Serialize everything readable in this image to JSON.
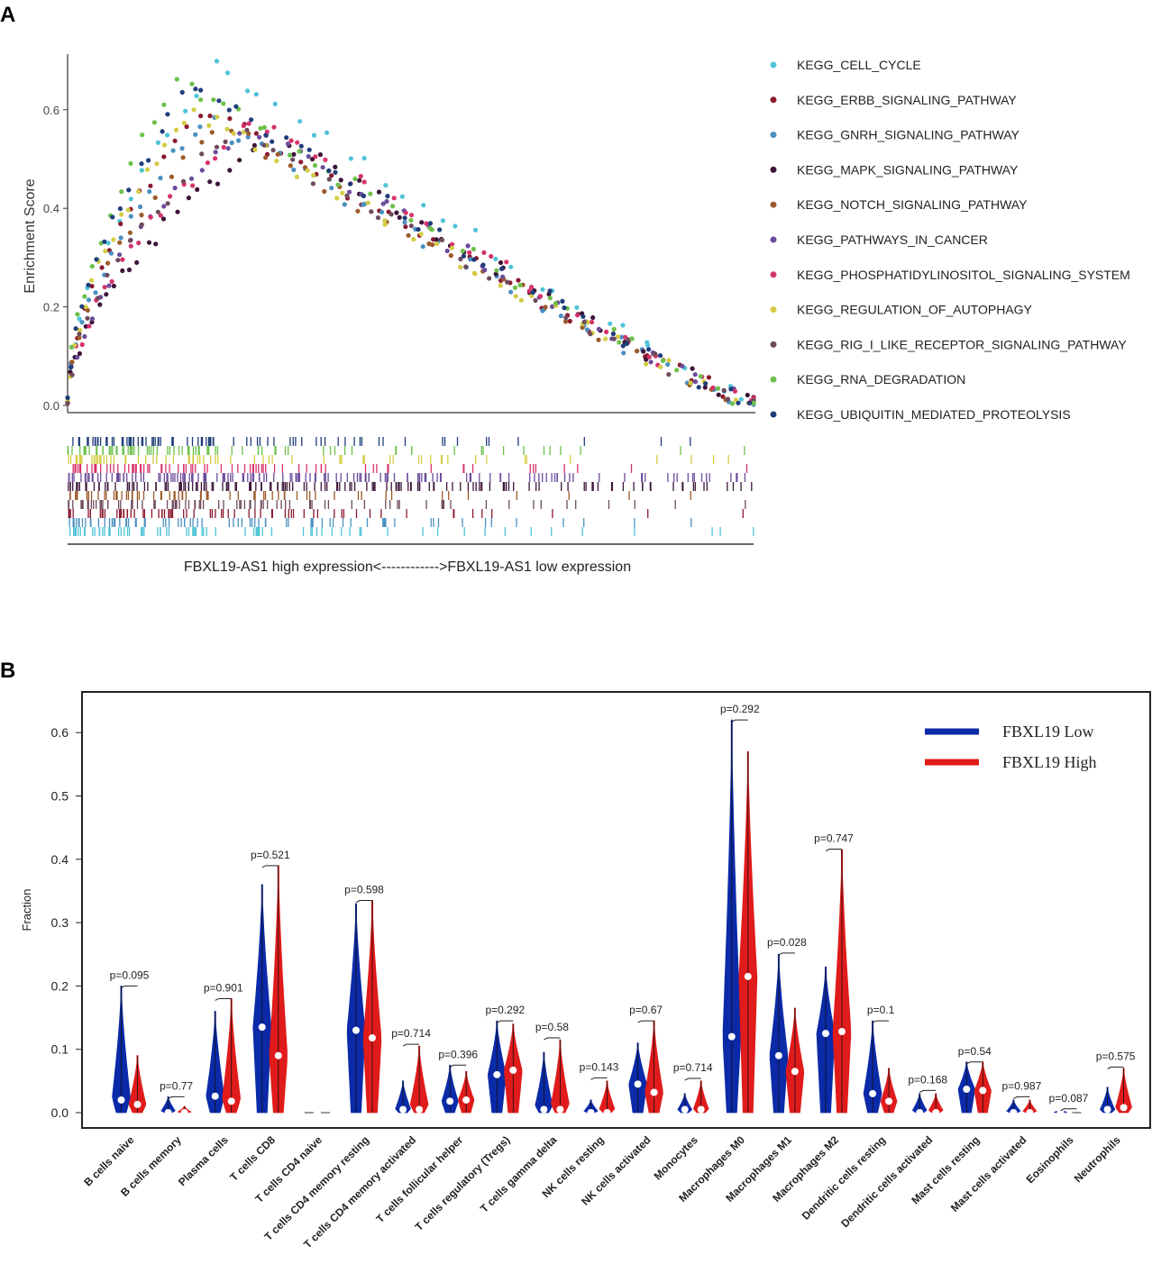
{
  "panel_labels": {
    "a": "A",
    "b": "B"
  },
  "chart_data": [
    {
      "type": "scatter",
      "id": "gsea",
      "ylabel": "Enrichment Score",
      "xlabel": "FBXL19-AS1 high expression<------------>FBXL19-AS1 low expression",
      "ylim": [
        0,
        0.7
      ],
      "yticks": [
        "0.0",
        "0.2",
        "0.4",
        "0.6"
      ],
      "ytick_values": [
        0,
        0.2,
        0.4,
        0.6
      ],
      "series": [
        {
          "name": "KEGG_CELL_CYCLE",
          "color": "#4fc3d7",
          "peak": 0.69,
          "peak_at": 0.22,
          "rank_density": [
            0.95,
            0.7,
            0.4,
            0.25,
            0.15,
            0.12,
            0.1,
            0.08,
            0.05,
            0.1
          ]
        },
        {
          "name": "KEGG_ERBB_SIGNALING_PATHWAY",
          "color": "#8b1a2f",
          "peak": 0.6,
          "peak_at": 0.2,
          "rank_density": [
            0.9,
            0.6,
            0.45,
            0.35,
            0.2,
            0.1,
            0.08,
            0.05,
            0.03,
            0.02
          ]
        },
        {
          "name": "KEGG_GNRH_SIGNALING_PATHWAY",
          "color": "#4a90c0",
          "peak": 0.58,
          "peak_at": 0.2,
          "rank_density": [
            0.85,
            0.55,
            0.4,
            0.3,
            0.3,
            0.15,
            0.1,
            0.08,
            0.05,
            0.05
          ]
        },
        {
          "name": "KEGG_MAPK_SIGNALING_PATHWAY",
          "color": "#3d1538",
          "peak": 0.55,
          "peak_at": 0.3,
          "rank_density": [
            0.9,
            0.8,
            0.7,
            0.65,
            0.6,
            0.55,
            0.5,
            0.4,
            0.35,
            0.3
          ]
        },
        {
          "name": "KEGG_NOTCH_SIGNALING_PATHWAY",
          "color": "#9c5a2a",
          "peak": 0.57,
          "peak_at": 0.22,
          "rank_density": [
            0.8,
            0.6,
            0.4,
            0.3,
            0.15,
            0.1,
            0.05,
            0.05,
            0.03,
            0.02
          ]
        },
        {
          "name": "KEGG_PATHWAYS_IN_CANCER",
          "color": "#6b4c9a",
          "peak": 0.57,
          "peak_at": 0.26,
          "rank_density": [
            0.95,
            0.85,
            0.75,
            0.7,
            0.6,
            0.5,
            0.4,
            0.3,
            0.25,
            0.4
          ]
        },
        {
          "name": "KEGG_PHOSPHATIDYLINOSITOL_SIGNALING_SYSTEM",
          "color": "#d6336c",
          "peak": 0.58,
          "peak_at": 0.28,
          "rank_density": [
            0.9,
            0.7,
            0.5,
            0.3,
            0.2,
            0.2,
            0.1,
            0.08,
            0.05,
            0.05
          ]
        },
        {
          "name": "KEGG_REGULATION_OF_AUTOPHAGY",
          "color": "#d4cc45",
          "peak": 0.6,
          "peak_at": 0.18,
          "rank_density": [
            0.8,
            0.5,
            0.3,
            0.2,
            0.15,
            0.25,
            0.1,
            0.05,
            0.05,
            0.1
          ]
        },
        {
          "name": "KEGG_RIG_I_LIKE_RECEPTOR_SIGNALING_PATHWAY",
          "color": "#6e4a5e",
          "peak": 0.56,
          "peak_at": 0.24,
          "rank_density": [
            0.9,
            0.7,
            0.5,
            0.35,
            0.25,
            0.2,
            0.15,
            0.1,
            0.08,
            0.05
          ]
        },
        {
          "name": "KEGG_RNA_DEGRADATION",
          "color": "#6cc04a",
          "peak": 0.66,
          "peak_at": 0.16,
          "rank_density": [
            0.95,
            0.7,
            0.4,
            0.25,
            0.15,
            0.1,
            0.2,
            0.1,
            0.05,
            0.05
          ]
        },
        {
          "name": "KEGG_UBIQUITIN_MEDIATED_PROTEOLYSIS",
          "color": "#1f3d7a",
          "peak": 0.65,
          "peak_at": 0.18,
          "rank_density": [
            0.98,
            0.75,
            0.5,
            0.35,
            0.25,
            0.1,
            0.1,
            0.05,
            0.03,
            0.03
          ]
        }
      ]
    },
    {
      "type": "violin",
      "id": "immune",
      "ylabel": "Fraction",
      "ylim": [
        0,
        0.65
      ],
      "yticks": [
        "0.0",
        "0.1",
        "0.2",
        "0.3",
        "0.4",
        "0.5",
        "0.6"
      ],
      "ytick_values": [
        0,
        0.1,
        0.2,
        0.3,
        0.4,
        0.5,
        0.6
      ],
      "legend": [
        {
          "name": "FBXL19 Low",
          "color": "#0a2aa8"
        },
        {
          "name": "FBXL19 High",
          "color": "#e01b1b"
        }
      ],
      "categories": [
        "B cells naive",
        "B cells memory",
        "Plasma cells",
        "T cells CD8",
        "T cells CD4 naive",
        "T cells CD4 memory resting",
        "T cells CD4 memory activated",
        "T cells follicular helper",
        "T cells regulatory (Tregs)",
        "T cells gamma delta",
        "NK cells resting",
        "NK cells activated",
        "Monocytes",
        "Macrophages M0",
        "Macrophages M1",
        "Macrophages M2",
        "Dendritic cells resting",
        "Dendritic cells activated",
        "Mast cells resting",
        "Mast cells activated",
        "Eosinophils",
        "Neutrophils"
      ],
      "pvalues": [
        "p=0.095",
        "p=0.77",
        "p=0.901",
        "p=0.521",
        "",
        "p=0.598",
        "p=0.714",
        "p=0.396",
        "p=0.292",
        "p=0.58",
        "p=0.143",
        "p=0.67",
        "p=0.714",
        "p=0.292",
        "p=0.028",
        "p=0.747",
        "p=0.1",
        "p=0.168",
        "p=0.54",
        "p=0.987",
        "p=0.087",
        "p=0.575"
      ],
      "low_max": [
        0.2,
        0.025,
        0.16,
        0.36,
        0.0,
        0.33,
        0.05,
        0.075,
        0.145,
        0.095,
        0.02,
        0.11,
        0.03,
        0.62,
        0.25,
        0.23,
        0.145,
        0.03,
        0.08,
        0.02,
        0.005,
        0.04
      ],
      "high_max": [
        0.09,
        0.01,
        0.18,
        0.39,
        0.0,
        0.335,
        0.105,
        0.065,
        0.14,
        0.115,
        0.05,
        0.145,
        0.05,
        0.57,
        0.165,
        0.415,
        0.07,
        0.03,
        0.08,
        0.02,
        0.003,
        0.07
      ],
      "low_median": [
        0.02,
        0.0,
        0.026,
        0.135,
        0.0,
        0.13,
        0.005,
        0.018,
        0.06,
        0.005,
        0.0,
        0.045,
        0.005,
        0.12,
        0.09,
        0.125,
        0.03,
        0.0,
        0.037,
        0.0,
        0.0,
        0.005
      ],
      "high_median": [
        0.013,
        0.0,
        0.018,
        0.09,
        0.0,
        0.118,
        0.005,
        0.02,
        0.067,
        0.005,
        0.0,
        0.032,
        0.005,
        0.215,
        0.065,
        0.128,
        0.018,
        0.0,
        0.035,
        0.0,
        0.0,
        0.008
      ],
      "bracket": [
        0.2,
        0.025,
        0.18,
        0.39,
        0.0,
        0.335,
        0.108,
        0.075,
        0.145,
        0.118,
        0.055,
        0.145,
        0.054,
        0.62,
        0.252,
        0.416,
        0.145,
        0.035,
        0.08,
        0.025,
        0.006,
        0.072
      ]
    }
  ]
}
